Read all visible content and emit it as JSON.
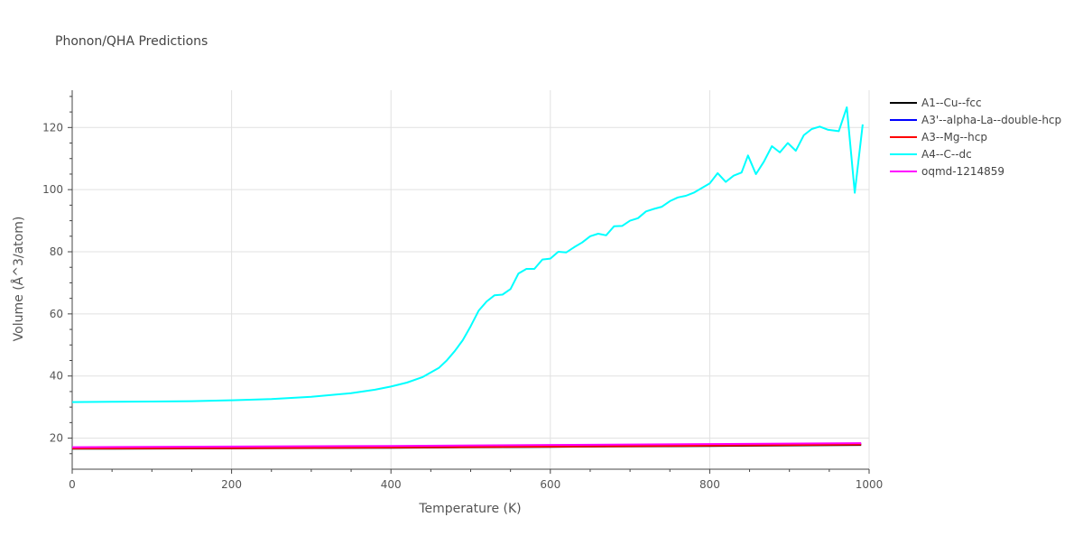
{
  "chart_data": {
    "type": "line",
    "title": "Phonon/QHA Predictions",
    "xlabel": "Temperature (K)",
    "ylabel": "Volume (Å^3/atom)",
    "xlim": [
      0,
      1000
    ],
    "ylim": [
      10,
      132
    ],
    "xticks": [
      0,
      200,
      400,
      600,
      800,
      1000
    ],
    "yticks": [
      20,
      40,
      60,
      80,
      100,
      120
    ],
    "grid": true,
    "legend_position": "right",
    "series": [
      {
        "name": "A1--Cu--fcc",
        "color": "#000000",
        "x": [
          0,
          200,
          400,
          600,
          800,
          990
        ],
        "y": [
          16.6,
          16.7,
          16.9,
          17.2,
          17.5,
          17.8
        ]
      },
      {
        "name": "A3'--alpha-La--double-hcp",
        "color": "#0000ff",
        "x": [
          0,
          200,
          400,
          600,
          800,
          990
        ],
        "y": [
          16.9,
          17.0,
          17.2,
          17.5,
          17.8,
          18.1
        ]
      },
      {
        "name": "A3--Mg--hcp",
        "color": "#ff0000",
        "x": [
          0,
          200,
          400,
          600,
          800,
          990
        ],
        "y": [
          16.7,
          16.8,
          17.0,
          17.3,
          17.6,
          18.0
        ]
      },
      {
        "name": "A4--C--dc",
        "color": "#00ffff",
        "x": [
          0,
          50,
          100,
          150,
          200,
          250,
          300,
          350,
          380,
          400,
          420,
          440,
          460,
          470,
          480,
          490,
          500,
          510,
          520,
          530,
          540,
          550,
          560,
          570,
          580,
          590,
          600,
          610,
          620,
          630,
          640,
          650,
          660,
          670,
          680,
          690,
          700,
          710,
          720,
          730,
          740,
          750,
          760,
          770,
          780,
          790,
          800,
          810,
          820,
          830,
          840,
          848,
          858,
          868,
          878,
          888,
          898,
          908,
          918,
          928,
          938,
          948,
          962,
          972,
          982,
          992
        ],
        "y": [
          31.6,
          31.7,
          31.8,
          31.9,
          32.2,
          32.6,
          33.3,
          34.5,
          35.6,
          36.6,
          37.9,
          39.7,
          42.6,
          45.0,
          48.0,
          51.5,
          56.0,
          61.0,
          64.0,
          66.0,
          66.2,
          68.0,
          73.0,
          74.5,
          74.5,
          77.5,
          77.8,
          80.0,
          79.8,
          81.5,
          83.0,
          85.0,
          85.8,
          85.3,
          88.2,
          88.3,
          90.0,
          90.8,
          93.0,
          93.8,
          94.5,
          96.3,
          97.5,
          98.0,
          99.0,
          100.5,
          102.0,
          105.3,
          102.5,
          104.5,
          105.5,
          111.0,
          105.0,
          109.0,
          114.0,
          112.0,
          115.0,
          112.5,
          117.5,
          119.5,
          120.3,
          119.3,
          118.8,
          126.5,
          99.0,
          121.0
        ]
      },
      {
        "name": "oqmd-1214859",
        "color": "#ff00ff",
        "x": [
          0,
          200,
          400,
          600,
          800,
          990
        ],
        "y": [
          17.1,
          17.3,
          17.5,
          17.8,
          18.1,
          18.4
        ]
      }
    ]
  }
}
